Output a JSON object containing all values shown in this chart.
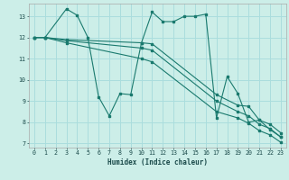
{
  "xlabel": "Humidex (Indice chaleur)",
  "background_color": "#cceee8",
  "grid_color": "#aadddd",
  "line_color": "#1a7a6e",
  "xlim": [
    -0.5,
    23.5
  ],
  "ylim": [
    6.8,
    13.6
  ],
  "yticks": [
    7,
    8,
    9,
    10,
    11,
    12,
    13
  ],
  "xticks": [
    0,
    1,
    2,
    3,
    4,
    5,
    6,
    7,
    8,
    9,
    10,
    11,
    12,
    13,
    14,
    15,
    16,
    17,
    18,
    19,
    20,
    21,
    22,
    23
  ],
  "series": [
    {
      "x": [
        0,
        1,
        3,
        4,
        5,
        6,
        7,
        8,
        9,
        10,
        11,
        12,
        13,
        14,
        15,
        16,
        17,
        18,
        19,
        20,
        21,
        22,
        23
      ],
      "y": [
        12,
        12,
        13.35,
        13.05,
        12.0,
        9.2,
        8.3,
        9.35,
        9.3,
        11.75,
        13.2,
        12.75,
        12.75,
        13.0,
        13.0,
        13.1,
        8.2,
        10.15,
        9.35,
        8.0,
        8.1,
        7.65,
        7.3
      ]
    },
    {
      "x": [
        0,
        1,
        3,
        10,
        11,
        17,
        19,
        20,
        21,
        22,
        23
      ],
      "y": [
        12,
        12,
        11.9,
        11.75,
        11.7,
        9.3,
        8.8,
        8.75,
        8.1,
        7.9,
        7.5
      ]
    },
    {
      "x": [
        0,
        1,
        3,
        10,
        11,
        17,
        19,
        20,
        21,
        22,
        23
      ],
      "y": [
        12,
        12,
        11.85,
        11.5,
        11.4,
        9.0,
        8.5,
        8.3,
        7.9,
        7.7,
        7.3
      ]
    },
    {
      "x": [
        0,
        1,
        3,
        10,
        11,
        17,
        19,
        20,
        21,
        22,
        23
      ],
      "y": [
        12,
        12,
        11.75,
        11.0,
        10.85,
        8.5,
        8.2,
        7.95,
        7.6,
        7.4,
        7.05
      ]
    }
  ]
}
